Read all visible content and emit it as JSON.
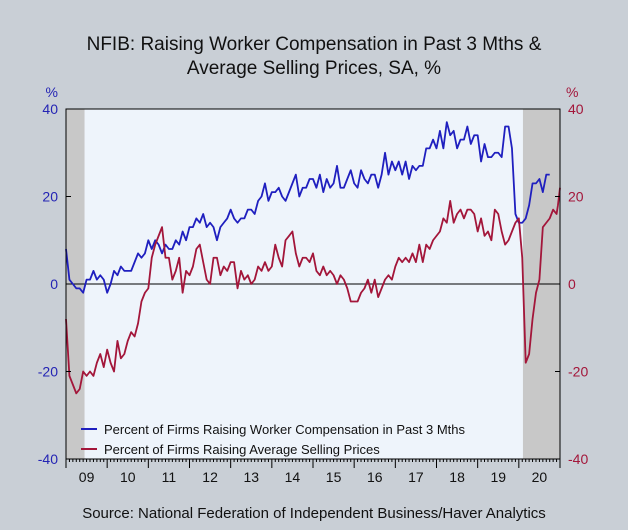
{
  "title_line1": "NFIB: Raising Worker Compensation in Past 3 Mths &",
  "title_line2": "Average Selling Prices, SA, %",
  "source": "Source:  National Federation of Independent Business/Haver Analytics",
  "colors": {
    "series1": "#1f1fbf",
    "series2": "#a3163a",
    "left_axis": "#2424b4",
    "right_axis": "#a3163a",
    "recession": "#c8c8c8",
    "plot_bg": "#eef4fb",
    "page_bg": "#c9cfd6"
  },
  "chart_data": {
    "type": "line",
    "ylim": [
      -40,
      40
    ],
    "yticks": [
      -40,
      -20,
      0,
      20,
      40
    ],
    "left_axis_unit": "%",
    "right_axis_unit": "%",
    "xlim": [
      2009.0,
      2021.0
    ],
    "xtick_labels": [
      "09",
      "10",
      "11",
      "12",
      "13",
      "14",
      "15",
      "16",
      "17",
      "18",
      "19",
      "20"
    ],
    "recession_shading": [
      [
        2009.0,
        2009.45
      ],
      [
        2020.1,
        2021.0
      ]
    ],
    "grid": false,
    "zero_line": true,
    "legend_placement": "bottom-left",
    "series": [
      {
        "name": "Percent of Firms Raising Worker Compensation in Past 3 Mths",
        "color": "#1f1fbf",
        "points": [
          [
            2009.0,
            8
          ],
          [
            2009.083,
            1
          ],
          [
            2009.167,
            0
          ],
          [
            2009.25,
            -1
          ],
          [
            2009.333,
            -1
          ],
          [
            2009.417,
            -2
          ],
          [
            2009.5,
            1
          ],
          [
            2009.583,
            1
          ],
          [
            2009.667,
            3
          ],
          [
            2009.75,
            1
          ],
          [
            2009.833,
            2
          ],
          [
            2009.917,
            1
          ],
          [
            2010.0,
            -2
          ],
          [
            2010.083,
            0
          ],
          [
            2010.167,
            3
          ],
          [
            2010.25,
            2
          ],
          [
            2010.333,
            4
          ],
          [
            2010.417,
            3
          ],
          [
            2010.5,
            3
          ],
          [
            2010.583,
            3
          ],
          [
            2010.667,
            5
          ],
          [
            2010.75,
            7
          ],
          [
            2010.833,
            6
          ],
          [
            2010.917,
            7
          ],
          [
            2011.0,
            10
          ],
          [
            2011.083,
            8
          ],
          [
            2011.167,
            10
          ],
          [
            2011.25,
            9
          ],
          [
            2011.333,
            7
          ],
          [
            2011.417,
            9
          ],
          [
            2011.5,
            8
          ],
          [
            2011.583,
            8
          ],
          [
            2011.667,
            10
          ],
          [
            2011.75,
            9
          ],
          [
            2011.833,
            12
          ],
          [
            2011.917,
            10
          ],
          [
            2012.0,
            13
          ],
          [
            2012.083,
            13
          ],
          [
            2012.167,
            15
          ],
          [
            2012.25,
            14
          ],
          [
            2012.333,
            16
          ],
          [
            2012.417,
            13
          ],
          [
            2012.5,
            14
          ],
          [
            2012.583,
            13
          ],
          [
            2012.667,
            10
          ],
          [
            2012.75,
            13
          ],
          [
            2012.833,
            14
          ],
          [
            2012.917,
            15
          ],
          [
            2013.0,
            17
          ],
          [
            2013.083,
            15
          ],
          [
            2013.167,
            14
          ],
          [
            2013.25,
            15
          ],
          [
            2013.333,
            15
          ],
          [
            2013.417,
            17
          ],
          [
            2013.5,
            17
          ],
          [
            2013.583,
            16
          ],
          [
            2013.667,
            19
          ],
          [
            2013.75,
            20
          ],
          [
            2013.833,
            23
          ],
          [
            2013.917,
            19
          ],
          [
            2014.0,
            21
          ],
          [
            2014.083,
            21
          ],
          [
            2014.167,
            22
          ],
          [
            2014.25,
            20
          ],
          [
            2014.333,
            19
          ],
          [
            2014.417,
            21
          ],
          [
            2014.5,
            23
          ],
          [
            2014.583,
            25
          ],
          [
            2014.667,
            20
          ],
          [
            2014.75,
            22
          ],
          [
            2014.833,
            22
          ],
          [
            2014.917,
            24
          ],
          [
            2015.0,
            24
          ],
          [
            2015.083,
            22
          ],
          [
            2015.167,
            25
          ],
          [
            2015.25,
            21
          ],
          [
            2015.333,
            24
          ],
          [
            2015.417,
            22
          ],
          [
            2015.5,
            23
          ],
          [
            2015.583,
            27
          ],
          [
            2015.667,
            22
          ],
          [
            2015.75,
            22
          ],
          [
            2015.833,
            24
          ],
          [
            2015.917,
            26
          ],
          [
            2016.0,
            23
          ],
          [
            2016.083,
            22
          ],
          [
            2016.167,
            26
          ],
          [
            2016.25,
            24
          ],
          [
            2016.333,
            23
          ],
          [
            2016.417,
            25
          ],
          [
            2016.5,
            25
          ],
          [
            2016.583,
            22
          ],
          [
            2016.667,
            25
          ],
          [
            2016.75,
            30
          ],
          [
            2016.833,
            25
          ],
          [
            2016.917,
            28
          ],
          [
            2017.0,
            26
          ],
          [
            2017.083,
            28
          ],
          [
            2017.167,
            25
          ],
          [
            2017.25,
            28
          ],
          [
            2017.333,
            24
          ],
          [
            2017.417,
            27
          ],
          [
            2017.5,
            26
          ],
          [
            2017.583,
            27
          ],
          [
            2017.667,
            27
          ],
          [
            2017.75,
            31
          ],
          [
            2017.833,
            31
          ],
          [
            2017.917,
            33
          ],
          [
            2018.0,
            31
          ],
          [
            2018.083,
            35
          ],
          [
            2018.167,
            31
          ],
          [
            2018.25,
            37
          ],
          [
            2018.333,
            34
          ],
          [
            2018.417,
            35
          ],
          [
            2018.5,
            31
          ],
          [
            2018.583,
            33
          ],
          [
            2018.667,
            33
          ],
          [
            2018.75,
            36
          ],
          [
            2018.833,
            32
          ],
          [
            2018.917,
            34
          ],
          [
            2019.0,
            34
          ],
          [
            2019.083,
            28
          ],
          [
            2019.167,
            32
          ],
          [
            2019.25,
            29
          ],
          [
            2019.333,
            29
          ],
          [
            2019.417,
            30
          ],
          [
            2019.5,
            30
          ],
          [
            2019.583,
            29
          ],
          [
            2019.667,
            36
          ],
          [
            2019.75,
            36
          ],
          [
            2019.833,
            31
          ],
          [
            2019.917,
            16
          ],
          [
            2020.0,
            14
          ],
          [
            2020.083,
            14
          ],
          [
            2020.167,
            15
          ],
          [
            2020.25,
            18
          ],
          [
            2020.333,
            23
          ],
          [
            2020.417,
            23
          ],
          [
            2020.5,
            24
          ],
          [
            2020.583,
            21
          ],
          [
            2020.667,
            25
          ],
          [
            2020.75,
            25
          ]
        ]
      },
      {
        "name": "Percent of Firms Raising Average Selling Prices",
        "color": "#a3163a",
        "points": [
          [
            2009.0,
            -8
          ],
          [
            2009.083,
            -21
          ],
          [
            2009.167,
            -23
          ],
          [
            2009.25,
            -25
          ],
          [
            2009.333,
            -24
          ],
          [
            2009.417,
            -20
          ],
          [
            2009.5,
            -21
          ],
          [
            2009.583,
            -20
          ],
          [
            2009.667,
            -21
          ],
          [
            2009.75,
            -18
          ],
          [
            2009.833,
            -16
          ],
          [
            2009.917,
            -19
          ],
          [
            2010.0,
            -15
          ],
          [
            2010.083,
            -18
          ],
          [
            2010.167,
            -20
          ],
          [
            2010.25,
            -13
          ],
          [
            2010.333,
            -17
          ],
          [
            2010.417,
            -16
          ],
          [
            2010.5,
            -13
          ],
          [
            2010.583,
            -11
          ],
          [
            2010.667,
            -12
          ],
          [
            2010.75,
            -9
          ],
          [
            2010.833,
            -4
          ],
          [
            2010.917,
            -2
          ],
          [
            2011.0,
            -1
          ],
          [
            2011.083,
            6
          ],
          [
            2011.167,
            9
          ],
          [
            2011.25,
            11
          ],
          [
            2011.333,
            13
          ],
          [
            2011.417,
            6
          ],
          [
            2011.5,
            6
          ],
          [
            2011.583,
            1
          ],
          [
            2011.667,
            3
          ],
          [
            2011.75,
            6
          ],
          [
            2011.833,
            -2
          ],
          [
            2011.917,
            3
          ],
          [
            2012.0,
            2
          ],
          [
            2012.083,
            4
          ],
          [
            2012.167,
            8
          ],
          [
            2012.25,
            9
          ],
          [
            2012.333,
            5
          ],
          [
            2012.417,
            1
          ],
          [
            2012.5,
            0
          ],
          [
            2012.583,
            6
          ],
          [
            2012.667,
            6
          ],
          [
            2012.75,
            2
          ],
          [
            2012.833,
            4
          ],
          [
            2012.917,
            3
          ],
          [
            2013.0,
            5
          ],
          [
            2013.083,
            5
          ],
          [
            2013.167,
            -1
          ],
          [
            2013.25,
            3
          ],
          [
            2013.333,
            1
          ],
          [
            2013.417,
            2
          ],
          [
            2013.5,
            0
          ],
          [
            2013.583,
            1
          ],
          [
            2013.667,
            4
          ],
          [
            2013.75,
            3
          ],
          [
            2013.833,
            5
          ],
          [
            2013.917,
            3
          ],
          [
            2014.0,
            4
          ],
          [
            2014.083,
            9
          ],
          [
            2014.167,
            6
          ],
          [
            2014.25,
            4
          ],
          [
            2014.333,
            10
          ],
          [
            2014.417,
            11
          ],
          [
            2014.5,
            12
          ],
          [
            2014.583,
            7
          ],
          [
            2014.667,
            4
          ],
          [
            2014.75,
            6
          ],
          [
            2014.833,
            6
          ],
          [
            2014.917,
            5
          ],
          [
            2015.0,
            7
          ],
          [
            2015.083,
            3
          ],
          [
            2015.167,
            2
          ],
          [
            2015.25,
            4
          ],
          [
            2015.333,
            2
          ],
          [
            2015.417,
            3
          ],
          [
            2015.5,
            2
          ],
          [
            2015.583,
            0
          ],
          [
            2015.667,
            2
          ],
          [
            2015.75,
            1
          ],
          [
            2015.833,
            -1
          ],
          [
            2015.917,
            -4
          ],
          [
            2016.0,
            -4
          ],
          [
            2016.083,
            -4
          ],
          [
            2016.167,
            -2
          ],
          [
            2016.25,
            -1
          ],
          [
            2016.333,
            1
          ],
          [
            2016.417,
            -2
          ],
          [
            2016.5,
            1
          ],
          [
            2016.583,
            -3
          ],
          [
            2016.667,
            -1
          ],
          [
            2016.75,
            1
          ],
          [
            2016.833,
            2
          ],
          [
            2016.917,
            1
          ],
          [
            2017.0,
            4
          ],
          [
            2017.083,
            6
          ],
          [
            2017.167,
            5
          ],
          [
            2017.25,
            6
          ],
          [
            2017.333,
            5
          ],
          [
            2017.417,
            7
          ],
          [
            2017.5,
            5
          ],
          [
            2017.583,
            9
          ],
          [
            2017.667,
            5
          ],
          [
            2017.75,
            9
          ],
          [
            2017.833,
            8
          ],
          [
            2017.917,
            10
          ],
          [
            2018.0,
            11
          ],
          [
            2018.083,
            12
          ],
          [
            2018.167,
            15
          ],
          [
            2018.25,
            14
          ],
          [
            2018.333,
            19
          ],
          [
            2018.417,
            14
          ],
          [
            2018.5,
            16
          ],
          [
            2018.583,
            17
          ],
          [
            2018.667,
            15
          ],
          [
            2018.75,
            17
          ],
          [
            2018.833,
            17
          ],
          [
            2018.917,
            16
          ],
          [
            2019.0,
            12
          ],
          [
            2019.083,
            15
          ],
          [
            2019.167,
            11
          ],
          [
            2019.25,
            12
          ],
          [
            2019.333,
            10
          ],
          [
            2019.417,
            17
          ],
          [
            2019.5,
            16
          ],
          [
            2019.583,
            12
          ],
          [
            2019.667,
            9
          ],
          [
            2019.75,
            10
          ],
          [
            2019.833,
            12
          ],
          [
            2019.917,
            14
          ],
          [
            2020.0,
            15
          ],
          [
            2020.083,
            6
          ],
          [
            2020.167,
            -18
          ],
          [
            2020.25,
            -16
          ],
          [
            2020.333,
            -8
          ],
          [
            2020.417,
            -2
          ],
          [
            2020.5,
            1
          ],
          [
            2020.583,
            13
          ],
          [
            2020.667,
            14
          ],
          [
            2020.75,
            15
          ],
          [
            2020.833,
            17
          ],
          [
            2020.917,
            16
          ],
          [
            2020.95,
            18
          ],
          [
            2021.0,
            22
          ]
        ]
      }
    ]
  }
}
